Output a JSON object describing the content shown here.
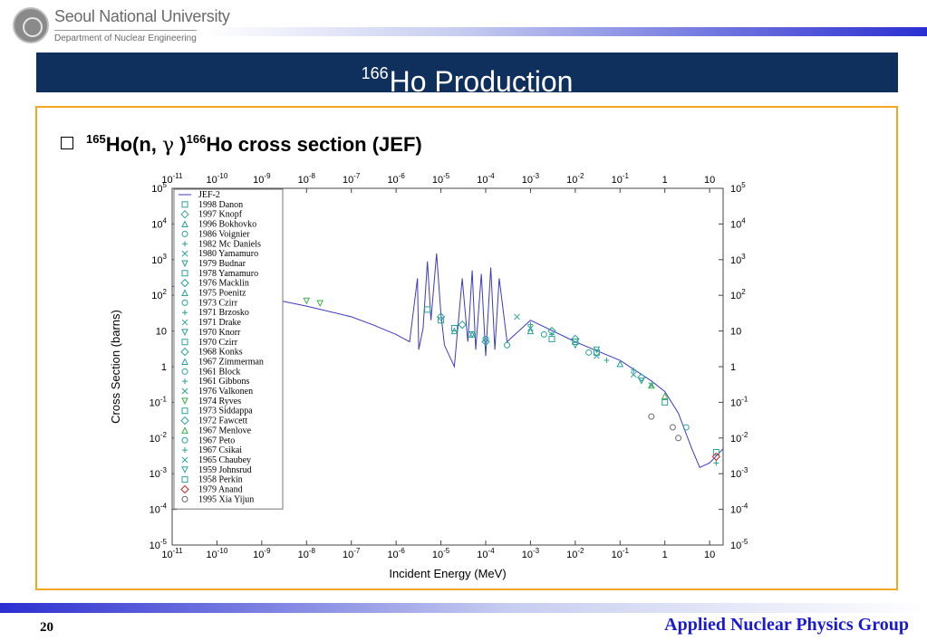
{
  "header": {
    "university": "Seoul National University",
    "department": "Department of Nuclear Engineering"
  },
  "slide": {
    "title_sup": "166",
    "title_main": "Ho Production",
    "bullet": {
      "sup1": "165",
      "part1": "Ho(n, ",
      "gamma": "γ",
      "part2": " )",
      "sup2": "166",
      "part3": "Ho cross section (JEF)"
    },
    "page_number": "20",
    "group": "Applied Nuclear Physics Group"
  },
  "colors": {
    "title_band": "#0f2f5d",
    "frame": "#f5a623",
    "footer_text": "#1a1ad0",
    "jef_line": "#3b3bbf",
    "markers": "#2aa198"
  },
  "chart_data": {
    "type": "scatter",
    "xlabel": "Incident Energy (MeV)",
    "ylabel": "Cross Section (barns)",
    "x_scale": "log",
    "y_scale": "log",
    "xlim": [
      1e-11,
      20
    ],
    "ylim": [
      1e-05,
      100000.0
    ],
    "grid": false,
    "legend_position": "left",
    "x_ticks": [
      "10-11",
      "10-10",
      "10-9",
      "10-8",
      "10-7",
      "10-6",
      "10-5",
      "10-4",
      "10-3",
      "10-2",
      "10-1",
      "1",
      "10"
    ],
    "y_ticks": [
      "10-5",
      "10-4",
      "10-3",
      "10-2",
      "10-1",
      "1",
      "10",
      "102",
      "103",
      "104",
      "105"
    ],
    "series": [
      {
        "name": "JEF-2",
        "kind": "line",
        "points": [
          [
            1e-11,
            180
          ],
          [
            1e-09,
            90
          ],
          [
            1e-08,
            50
          ],
          [
            1e-07,
            25
          ],
          [
            3e-07,
            15
          ],
          [
            1e-06,
            8
          ],
          [
            2e-06,
            5
          ],
          [
            3e-06,
            300
          ],
          [
            3.2e-06,
            3
          ],
          [
            4e-06,
            12
          ],
          [
            5e-06,
            900
          ],
          [
            6e-06,
            20
          ],
          [
            8e-06,
            1500
          ],
          [
            1e-05,
            30
          ],
          [
            1.2e-05,
            4
          ],
          [
            2e-05,
            1
          ],
          [
            3e-05,
            300
          ],
          [
            4e-05,
            5
          ],
          [
            5e-05,
            500
          ],
          [
            6e-05,
            3
          ],
          [
            8e-05,
            400
          ],
          [
            0.0001,
            2
          ],
          [
            0.00013,
            600
          ],
          [
            0.00016,
            3
          ],
          [
            0.0002,
            300
          ],
          [
            0.0003,
            5
          ],
          [
            0.001,
            20
          ],
          [
            0.01,
            5
          ],
          [
            0.1,
            1.5
          ],
          [
            0.5,
            0.4
          ],
          [
            1,
            0.2
          ],
          [
            2,
            0.05
          ],
          [
            4,
            0.005
          ],
          [
            6,
            0.0015
          ],
          [
            10,
            0.002
          ],
          [
            20,
            0.005
          ]
        ]
      },
      {
        "name": "1998 Danon",
        "points": [
          [
            5e-06,
            40
          ],
          [
            1e-05,
            20
          ],
          [
            2e-05,
            12
          ]
        ]
      },
      {
        "name": "1997 Knopf",
        "points": [
          [
            1e-05,
            25
          ],
          [
            3e-05,
            15
          ]
        ]
      },
      {
        "name": "1996 Bokhovko",
        "points": [
          [
            2e-05,
            10
          ],
          [
            5e-05,
            8
          ]
        ]
      },
      {
        "name": "1986 Voignier",
        "points": [
          [
            0.0001,
            6
          ],
          [
            0.0003,
            4
          ]
        ]
      },
      {
        "name": "1982 Mc Daniels",
        "points": [
          [
            0.001,
            15
          ],
          [
            0.003,
            8
          ]
        ]
      },
      {
        "name": "1980 Yamamuro",
        "points": [
          [
            0.0005,
            25
          ],
          [
            0.001,
            12
          ]
        ]
      },
      {
        "name": "1979 Budnar",
        "points": [
          [
            0.01,
            4
          ],
          [
            0.03,
            3
          ]
        ]
      },
      {
        "name": "1978 Yamamuro",
        "points": [
          [
            0.003,
            6
          ],
          [
            0.01,
            5
          ]
        ]
      },
      {
        "name": "1976 Macklin",
        "points": [
          [
            0.003,
            10
          ],
          [
            0.01,
            6
          ]
        ]
      },
      {
        "name": "1975 Poenitz",
        "points": [
          [
            0.1,
            1.2
          ]
        ]
      },
      {
        "name": "1973 Czirr",
        "points": [
          [
            0.02,
            2.5
          ]
        ]
      },
      {
        "name": "1971 Brzosko",
        "points": [
          [
            0.2,
            0.8
          ]
        ]
      },
      {
        "name": "1971 Drake",
        "points": [
          [
            0.03,
            2
          ]
        ]
      },
      {
        "name": "1970 Knorr",
        "points": [
          [
            5e-05,
            8
          ]
        ]
      },
      {
        "name": "1970 Czirr",
        "points": [
          [
            0.03,
            2.5
          ]
        ]
      },
      {
        "name": "1968 Konks",
        "points": [
          [
            0.0001,
            5
          ]
        ]
      },
      {
        "name": "1967 Zimmerman",
        "points": [
          [
            0.001,
            10
          ]
        ]
      },
      {
        "name": "1961 Block",
        "points": [
          [
            0.002,
            8
          ]
        ]
      },
      {
        "name": "1961 Gibbons",
        "points": [
          [
            0.05,
            1.5
          ]
        ]
      },
      {
        "name": "1976 Valkonen",
        "points": [
          [
            0.5,
            0.3
          ]
        ]
      },
      {
        "name": "1974 Ryves",
        "points": [
          [
            1e-08,
            70
          ],
          [
            2e-08,
            60
          ]
        ]
      },
      {
        "name": "1973 Siddappa",
        "points": [
          [
            1,
            0.1
          ]
        ]
      },
      {
        "name": "1972 Fawcett",
        "points": [
          [
            0.3,
            0.5
          ]
        ]
      },
      {
        "name": "1967 Menlove",
        "points": [
          [
            0.5,
            0.3
          ],
          [
            1,
            0.15
          ]
        ]
      },
      {
        "name": "1967 Peto",
        "points": [
          [
            3,
            0.02
          ]
        ]
      },
      {
        "name": "1967 Csikai",
        "points": [
          [
            14,
            0.002
          ]
        ]
      },
      {
        "name": "1965 Chaubey",
        "points": [
          [
            0.2,
            0.6
          ]
        ]
      },
      {
        "name": "1959 Johnsrud",
        "points": [
          [
            0.3,
            0.4
          ]
        ]
      },
      {
        "name": "1958 Perkin",
        "points": [
          [
            14,
            0.004
          ]
        ]
      },
      {
        "name": "1979 Anand",
        "points": [
          [
            14,
            0.003
          ]
        ]
      },
      {
        "name": "1995 Xia Yijun",
        "points": [
          [
            0.5,
            0.04
          ],
          [
            1.5,
            0.02
          ],
          [
            2,
            0.01
          ]
        ]
      }
    ]
  }
}
